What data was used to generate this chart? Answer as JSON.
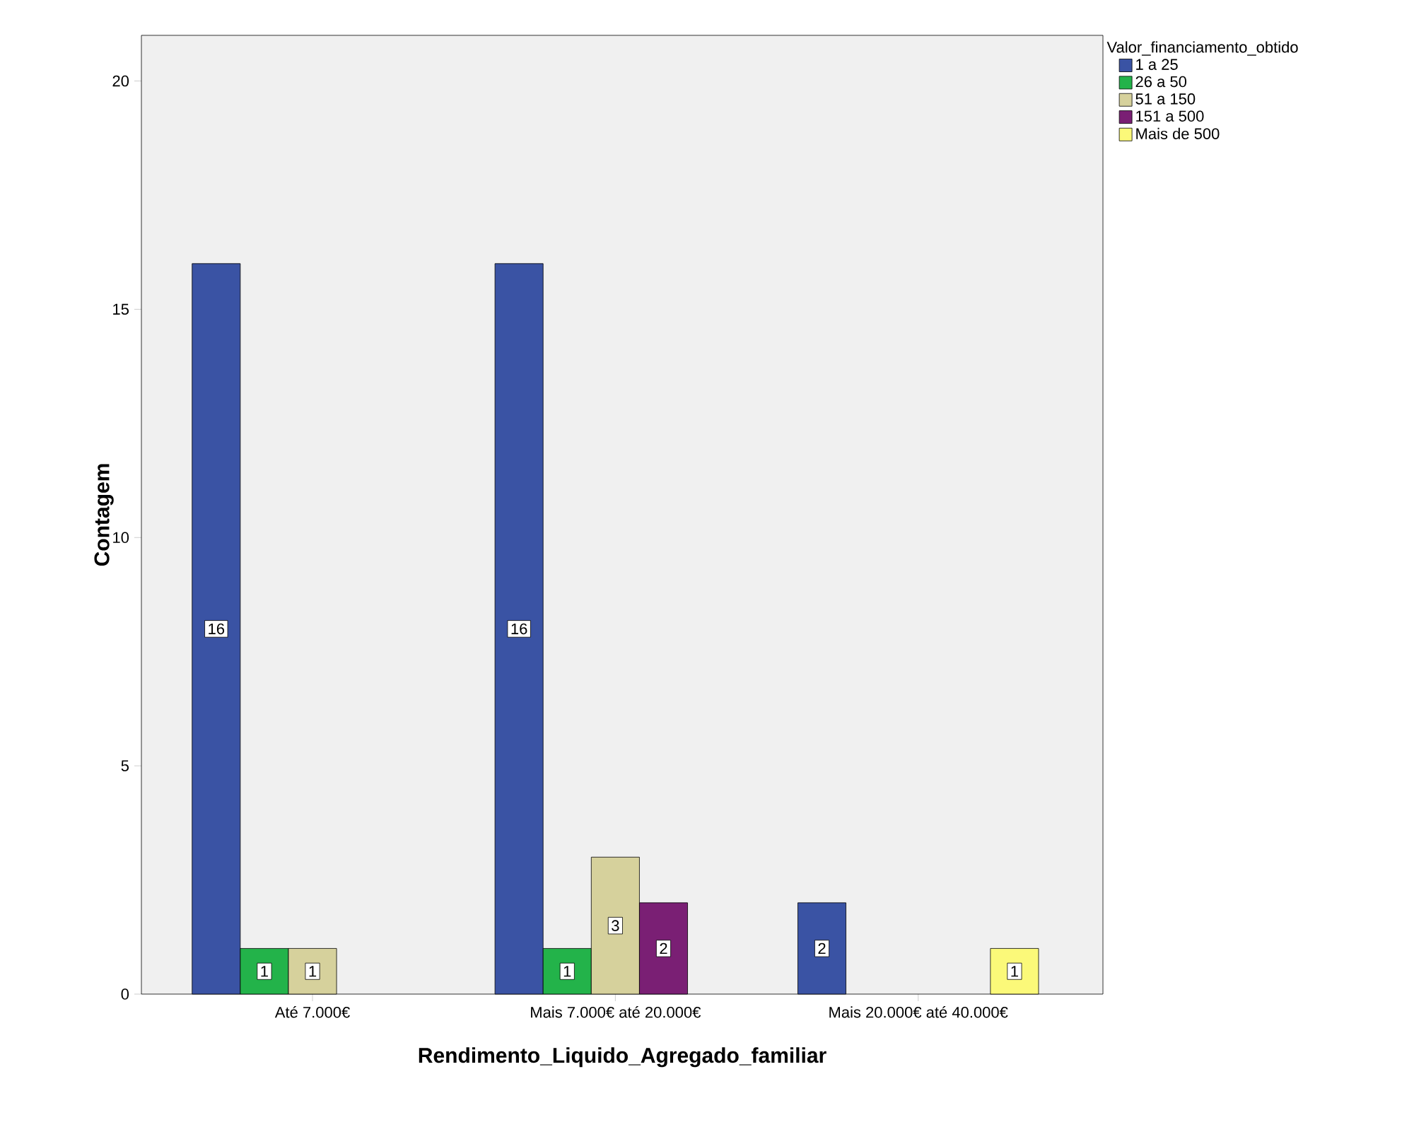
{
  "chart_data": {
    "type": "bar",
    "xlabel": "Rendimento_Liquido_Agregado_familiar",
    "ylabel": "Contagem",
    "legend_title": "Valor_financiamento_obtido",
    "categories": [
      "Até 7.000€",
      "Mais 7.000€ até 20.000€",
      "Mais 20.000€ até 40.000€"
    ],
    "series": [
      {
        "name": "1 a 25",
        "color": "#3a53a4",
        "values": [
          16,
          16,
          2
        ]
      },
      {
        "name": "26 a 50",
        "color": "#23b34a",
        "values": [
          1,
          1,
          null
        ]
      },
      {
        "name": "51 a 150",
        "color": "#d6d19c",
        "values": [
          1,
          3,
          null
        ]
      },
      {
        "name": "151 a 500",
        "color": "#7a1f74",
        "values": [
          null,
          2,
          null
        ]
      },
      {
        "name": "Mais de 500",
        "color": "#fbf979",
        "values": [
          null,
          null,
          1
        ]
      }
    ],
    "ylim": [
      0,
      21
    ],
    "yticks": [
      0,
      5,
      10,
      15,
      20
    ],
    "grid": false,
    "legend": "top right",
    "data_labels": true
  }
}
